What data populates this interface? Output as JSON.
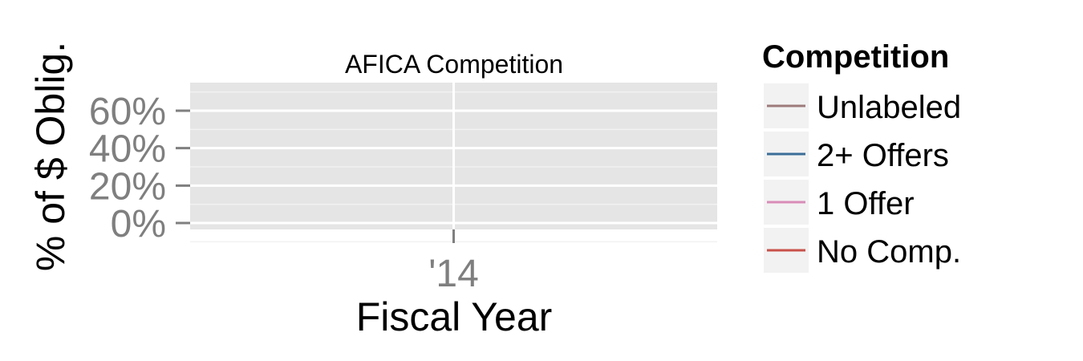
{
  "chart_data": {
    "type": "line",
    "title": "AFICA Competition",
    "xlabel": "Fiscal Year",
    "ylabel": "% of $ Oblig.",
    "x_ticks": [
      "'14"
    ],
    "y_ticks": [
      "0%",
      "20%",
      "40%",
      "60%"
    ],
    "ylim": [
      0,
      0.75
    ],
    "grid": true,
    "legend": {
      "title": "Competition",
      "placement": "right"
    },
    "series": [
      {
        "name": "Unlabeled",
        "color": "#9e7b7b",
        "values": []
      },
      {
        "name": "2+ Offers",
        "color": "#3a6e99",
        "values": []
      },
      {
        "name": "1 Offer",
        "color": "#d98cb8",
        "values": []
      },
      {
        "name": "No Comp.",
        "color": "#c9504b",
        "values": []
      }
    ]
  }
}
